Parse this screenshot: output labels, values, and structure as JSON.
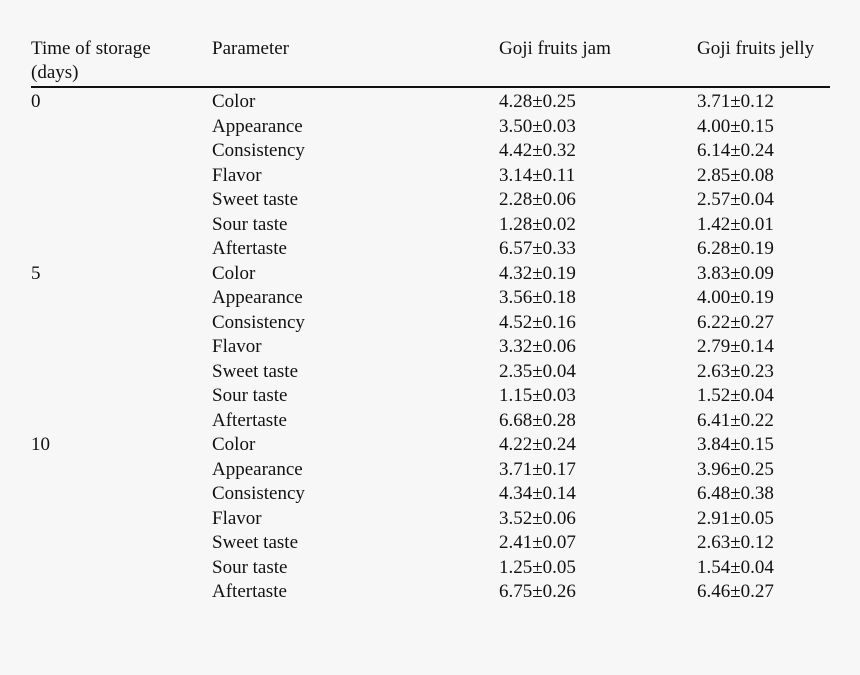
{
  "table": {
    "headers": [
      "Time of storage (days)",
      "Parameter",
      "Goji fruits jam",
      "Goji fruits jelly"
    ],
    "header_lines": {
      "time_line1": "Time of storage",
      "time_line2": "(days)",
      "parameter": "Parameter",
      "jam": "Goji fruits jam",
      "jelly": "Goji fruits jelly"
    },
    "groups": [
      {
        "time": "0",
        "rows": [
          {
            "parameter": "Color",
            "jam": "4.28±0.25",
            "jelly": "3.71±0.12"
          },
          {
            "parameter": "Appearance",
            "jam": "3.50±0.03",
            "jelly": "4.00±0.15"
          },
          {
            "parameter": "Consistency",
            "jam": "4.42±0.32",
            "jelly": "6.14±0.24"
          },
          {
            "parameter": "Flavor",
            "jam": "3.14±0.11",
            "jelly": "2.85±0.08"
          },
          {
            "parameter": "Sweet taste",
            "jam": "2.28±0.06",
            "jelly": "2.57±0.04"
          },
          {
            "parameter": "Sour taste",
            "jam": "1.28±0.02",
            "jelly": "1.42±0.01"
          },
          {
            "parameter": "Aftertaste",
            "jam": "6.57±0.33",
            "jelly": "6.28±0.19"
          }
        ]
      },
      {
        "time": "5",
        "rows": [
          {
            "parameter": "Color",
            "jam": "4.32±0.19",
            "jelly": "3.83±0.09"
          },
          {
            "parameter": "Appearance",
            "jam": "3.56±0.18",
            "jelly": "4.00±0.19"
          },
          {
            "parameter": "Consistency",
            "jam": "4.52±0.16",
            "jelly": "6.22±0.27"
          },
          {
            "parameter": "Flavor",
            "jam": "3.32±0.06",
            "jelly": "2.79±0.14"
          },
          {
            "parameter": "Sweet taste",
            "jam": "2.35±0.04",
            "jelly": "2.63±0.23"
          },
          {
            "parameter": "Sour taste",
            "jam": "1.15±0.03",
            "jelly": "1.52±0.04"
          },
          {
            "parameter": "Aftertaste",
            "jam": "6.68±0.28",
            "jelly": "6.41±0.22"
          }
        ]
      },
      {
        "time": "10",
        "rows": [
          {
            "parameter": "Color",
            "jam": "4.22±0.24",
            "jelly": "3.84±0.15"
          },
          {
            "parameter": "Appearance",
            "jam": "3.71±0.17",
            "jelly": "3.96±0.25"
          },
          {
            "parameter": "Consistency",
            "jam": "4.34±0.14",
            "jelly": "6.48±0.38"
          },
          {
            "parameter": "Flavor",
            "jam": "3.52±0.06",
            "jelly": "2.91±0.05"
          },
          {
            "parameter": "Sweet taste",
            "jam": "2.41±0.07",
            "jelly": "2.63±0.12"
          },
          {
            "parameter": "Sour taste",
            "jam": "1.25±0.05",
            "jelly": "1.54±0.04"
          },
          {
            "parameter": "Aftertaste",
            "jam": "6.75±0.26",
            "jelly": "6.46±0.27"
          }
        ]
      }
    ]
  }
}
